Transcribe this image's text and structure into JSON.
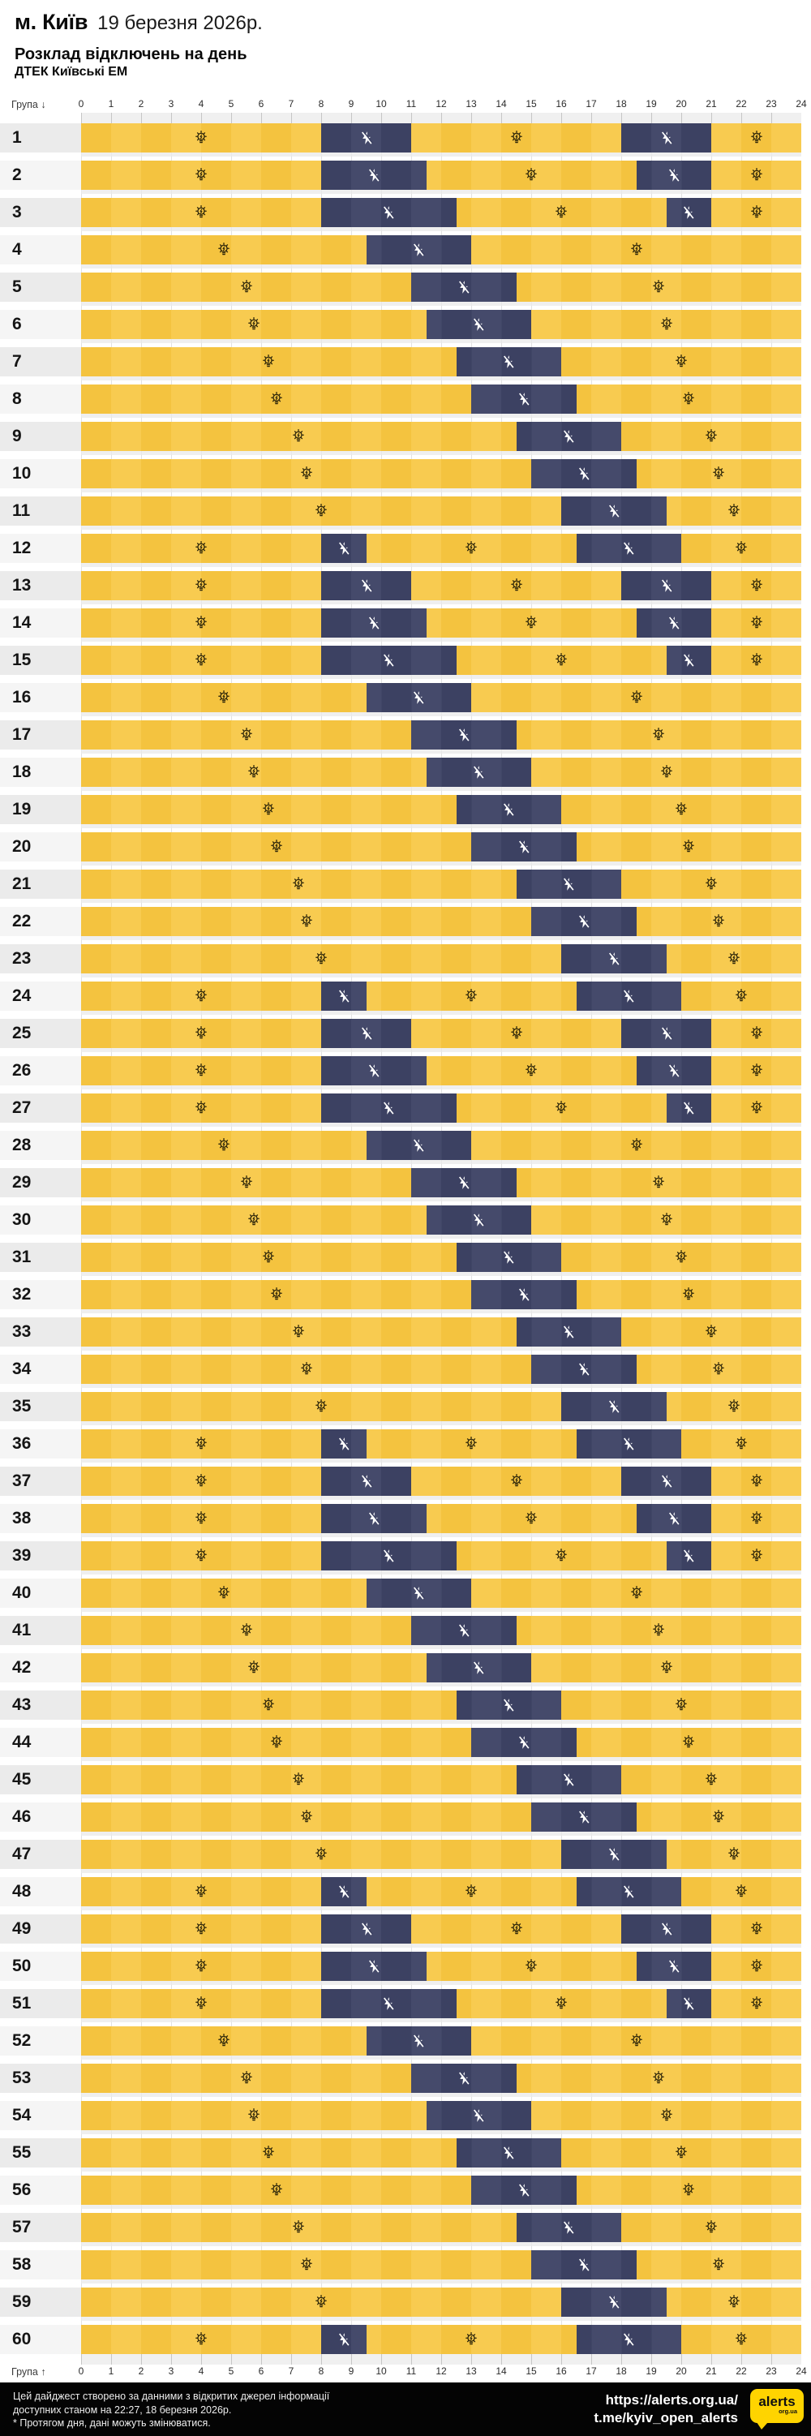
{
  "header": {
    "city": "м. Київ",
    "date": "19 березня 2026р.",
    "title": "Розклад відключень на день",
    "subtitle": "ДТЕК Київські ЕМ"
  },
  "axis": {
    "top_label": "Група ↓",
    "bottom_label": "Група ↑",
    "hours": [
      0,
      1,
      2,
      3,
      4,
      5,
      6,
      7,
      8,
      9,
      10,
      11,
      12,
      13,
      14,
      15,
      16,
      17,
      18,
      19,
      20,
      21,
      22,
      23,
      24
    ]
  },
  "chart_data": {
    "type": "heatmap",
    "x_unit": "hour of day",
    "x_range": [
      0,
      24
    ],
    "states": {
      "on": "yellow cell with lightbulb icon (power on)",
      "off": "navy cell with crossed-out flash icon (power off)"
    },
    "groups": [
      {
        "group": "1",
        "outages": [
          [
            8,
            11
          ],
          [
            18,
            21
          ]
        ]
      },
      {
        "group": "2",
        "outages": [
          [
            8,
            11.5
          ],
          [
            18.5,
            21
          ]
        ]
      },
      {
        "group": "3",
        "outages": [
          [
            8,
            12.5
          ],
          [
            19.5,
            21
          ]
        ]
      },
      {
        "group": "4",
        "outages": [
          [
            9.5,
            13
          ]
        ]
      },
      {
        "group": "5",
        "outages": [
          [
            11,
            14.5
          ]
        ]
      },
      {
        "group": "6",
        "outages": [
          [
            11.5,
            15
          ]
        ]
      },
      {
        "group": "7",
        "outages": [
          [
            12.5,
            16
          ]
        ]
      },
      {
        "group": "8",
        "outages": [
          [
            13,
            16.5
          ]
        ]
      },
      {
        "group": "9",
        "outages": [
          [
            14.5,
            18
          ]
        ]
      },
      {
        "group": "10",
        "outages": [
          [
            15,
            18.5
          ]
        ]
      },
      {
        "group": "11",
        "outages": [
          [
            16,
            19.5
          ]
        ]
      },
      {
        "group": "12",
        "outages": [
          [
            8,
            9.5
          ],
          [
            16.5,
            20
          ]
        ]
      },
      {
        "group": "13",
        "outages": [
          [
            8,
            11
          ],
          [
            18,
            21
          ]
        ]
      },
      {
        "group": "14",
        "outages": [
          [
            8,
            11.5
          ],
          [
            18.5,
            21
          ]
        ]
      },
      {
        "group": "15",
        "outages": [
          [
            8,
            12.5
          ],
          [
            19.5,
            21
          ]
        ]
      },
      {
        "group": "16",
        "outages": [
          [
            9.5,
            13
          ]
        ]
      },
      {
        "group": "17",
        "outages": [
          [
            11,
            14.5
          ]
        ]
      },
      {
        "group": "18",
        "outages": [
          [
            11.5,
            15
          ]
        ]
      },
      {
        "group": "19",
        "outages": [
          [
            12.5,
            16
          ]
        ]
      },
      {
        "group": "20",
        "outages": [
          [
            13,
            16.5
          ]
        ]
      },
      {
        "group": "21",
        "outages": [
          [
            14.5,
            18
          ]
        ]
      },
      {
        "group": "22",
        "outages": [
          [
            15,
            18.5
          ]
        ]
      },
      {
        "group": "23",
        "outages": [
          [
            16,
            19.5
          ]
        ]
      },
      {
        "group": "24",
        "outages": [
          [
            8,
            9.5
          ],
          [
            16.5,
            20
          ]
        ]
      },
      {
        "group": "25",
        "outages": [
          [
            8,
            11
          ],
          [
            18,
            21
          ]
        ]
      },
      {
        "group": "26",
        "outages": [
          [
            8,
            11.5
          ],
          [
            18.5,
            21
          ]
        ]
      },
      {
        "group": "27",
        "outages": [
          [
            8,
            12.5
          ],
          [
            19.5,
            21
          ]
        ]
      },
      {
        "group": "28",
        "outages": [
          [
            9.5,
            13
          ]
        ]
      },
      {
        "group": "29",
        "outages": [
          [
            11,
            14.5
          ]
        ]
      },
      {
        "group": "30",
        "outages": [
          [
            11.5,
            15
          ]
        ]
      },
      {
        "group": "31",
        "outages": [
          [
            12.5,
            16
          ]
        ]
      },
      {
        "group": "32",
        "outages": [
          [
            13,
            16.5
          ]
        ]
      },
      {
        "group": "33",
        "outages": [
          [
            14.5,
            18
          ]
        ]
      },
      {
        "group": "34",
        "outages": [
          [
            15,
            18.5
          ]
        ]
      },
      {
        "group": "35",
        "outages": [
          [
            16,
            19.5
          ]
        ]
      },
      {
        "group": "36",
        "outages": [
          [
            8,
            9.5
          ],
          [
            16.5,
            20
          ]
        ]
      },
      {
        "group": "37",
        "outages": [
          [
            8,
            11
          ],
          [
            18,
            21
          ]
        ]
      },
      {
        "group": "38",
        "outages": [
          [
            8,
            11.5
          ],
          [
            18.5,
            21
          ]
        ]
      },
      {
        "group": "39",
        "outages": [
          [
            8,
            12.5
          ],
          [
            19.5,
            21
          ]
        ]
      },
      {
        "group": "40",
        "outages": [
          [
            9.5,
            13
          ]
        ]
      },
      {
        "group": "41",
        "outages": [
          [
            11,
            14.5
          ]
        ]
      },
      {
        "group": "42",
        "outages": [
          [
            11.5,
            15
          ]
        ]
      },
      {
        "group": "43",
        "outages": [
          [
            12.5,
            16
          ]
        ]
      },
      {
        "group": "44",
        "outages": [
          [
            13,
            16.5
          ]
        ]
      },
      {
        "group": "45",
        "outages": [
          [
            14.5,
            18
          ]
        ]
      },
      {
        "group": "46",
        "outages": [
          [
            15,
            18.5
          ]
        ]
      },
      {
        "group": "47",
        "outages": [
          [
            16,
            19.5
          ]
        ]
      },
      {
        "group": "48",
        "outages": [
          [
            8,
            9.5
          ],
          [
            16.5,
            20
          ]
        ]
      },
      {
        "group": "49",
        "outages": [
          [
            8,
            11
          ],
          [
            18,
            21
          ]
        ]
      },
      {
        "group": "50",
        "outages": [
          [
            8,
            11.5
          ],
          [
            18.5,
            21
          ]
        ]
      },
      {
        "group": "51",
        "outages": [
          [
            8,
            12.5
          ],
          [
            19.5,
            21
          ]
        ]
      },
      {
        "group": "52",
        "outages": [
          [
            9.5,
            13
          ]
        ]
      },
      {
        "group": "53",
        "outages": [
          [
            11,
            14.5
          ]
        ]
      },
      {
        "group": "54",
        "outages": [
          [
            11.5,
            15
          ]
        ]
      },
      {
        "group": "55",
        "outages": [
          [
            12.5,
            16
          ]
        ]
      },
      {
        "group": "56",
        "outages": [
          [
            13,
            16.5
          ]
        ]
      },
      {
        "group": "57",
        "outages": [
          [
            14.5,
            18
          ]
        ]
      },
      {
        "group": "58",
        "outages": [
          [
            15,
            18.5
          ]
        ]
      },
      {
        "group": "59",
        "outages": [
          [
            16,
            19.5
          ]
        ]
      },
      {
        "group": "60",
        "outages": [
          [
            8,
            9.5
          ],
          [
            16.5,
            20
          ]
        ]
      }
    ]
  },
  "colors": {
    "cell_on": "#F4C33F",
    "cell_on_alt": "#F8CB50",
    "cell_off": "#3C4162",
    "cell_off_alt": "#454A6B",
    "footer_bg": "#040404",
    "logo_yellow": "#FFD400"
  },
  "footer": {
    "line1": "Цей дайджест створено за данними з відкритих джерел інформації",
    "line2": "доступних станом на 22:27, 18 березня 2026р.",
    "line3": "* Протягом дня, дані можуть змінюватися.",
    "url1": "https://alerts.org.ua/",
    "url2": "t.me/kyiv_open_alerts",
    "logo_text": "alerts",
    "logo_sub": "org.ua"
  }
}
